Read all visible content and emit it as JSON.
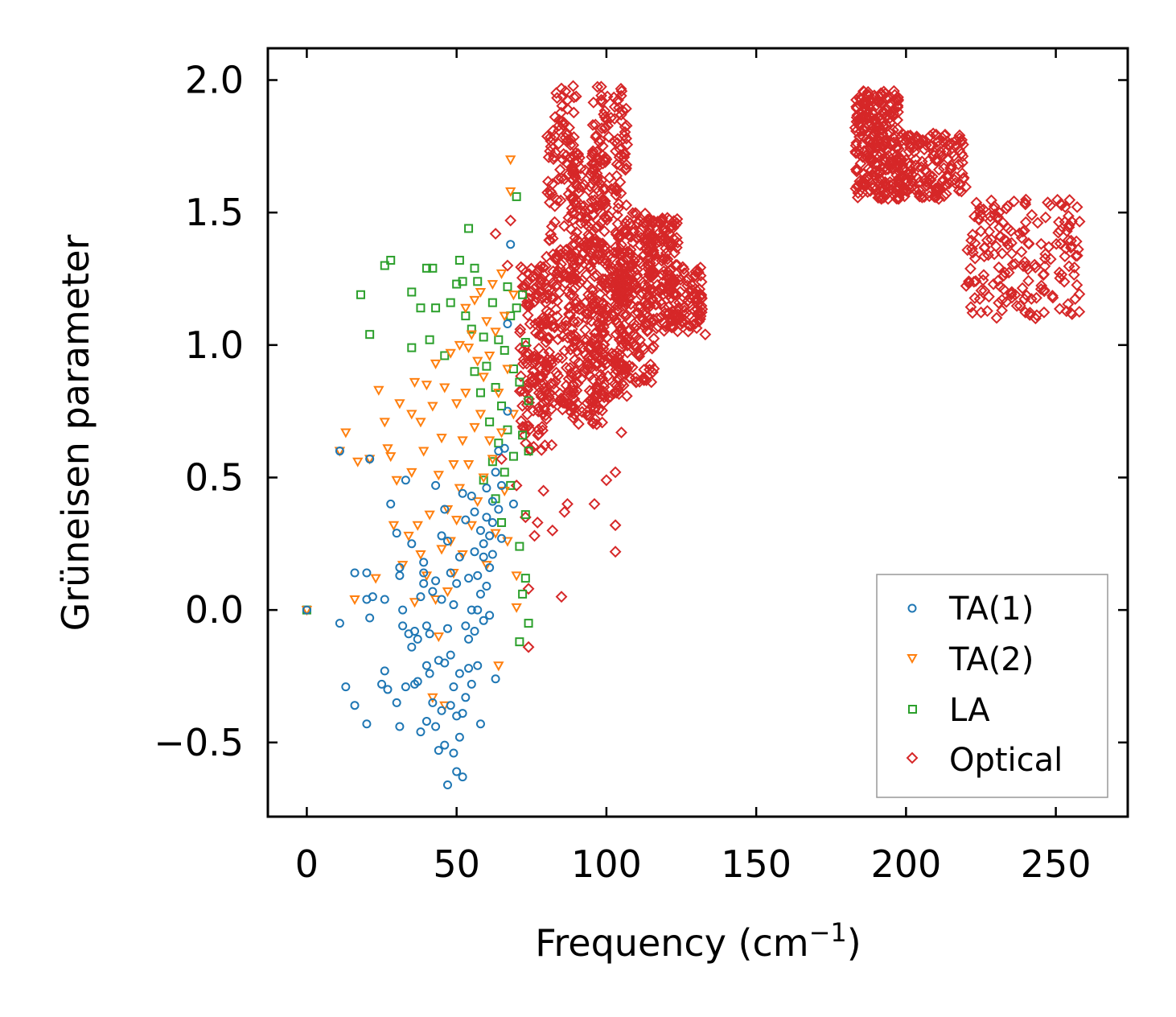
{
  "chart_data": {
    "type": "scatter",
    "title": "",
    "xlabel": "Frequency (cm",
    "xlabel_sup": "−1",
    "xlabel_close": ")",
    "ylabel": "Grüneisen parameter",
    "xlim": [
      -13,
      274
    ],
    "ylim": [
      -0.78,
      2.12
    ],
    "xticks": [
      0,
      50,
      100,
      150,
      200,
      250
    ],
    "xtick_labels": [
      "0",
      "50",
      "100",
      "150",
      "200",
      "250"
    ],
    "yticks": [
      -0.5,
      0.0,
      0.5,
      1.0,
      1.5,
      2.0
    ],
    "ytick_labels": [
      "−0.5",
      "0.0",
      "0.5",
      "1.0",
      "1.5",
      "2.0"
    ],
    "grid": false,
    "legend_position": "bottom-right",
    "series": [
      {
        "name": "TA(1)",
        "marker": "circle",
        "color": "#1f77b4",
        "points": [
          [
            0,
            0.0
          ],
          [
            11,
            0.6
          ],
          [
            11,
            -0.05
          ],
          [
            13,
            -0.29
          ],
          [
            16,
            0.14
          ],
          [
            16,
            -0.36
          ],
          [
            20,
            0.14
          ],
          [
            20,
            0.04
          ],
          [
            20,
            -0.43
          ],
          [
            21,
            -0.03
          ],
          [
            21,
            0.57
          ],
          [
            22,
            0.05
          ],
          [
            25,
            -0.28
          ],
          [
            26,
            -0.23
          ],
          [
            26,
            0.04
          ],
          [
            27,
            -0.3
          ],
          [
            28,
            0.4
          ],
          [
            30,
            -0.35
          ],
          [
            30,
            0.29
          ],
          [
            31,
            0.16
          ],
          [
            31,
            0.13
          ],
          [
            31,
            -0.44
          ],
          [
            32,
            -0.06
          ],
          [
            32,
            0.0
          ],
          [
            33,
            0.49
          ],
          [
            33,
            -0.29
          ],
          [
            34,
            -0.09
          ],
          [
            35,
            0.25
          ],
          [
            35,
            -0.14
          ],
          [
            36,
            -0.28
          ],
          [
            36,
            -0.08
          ],
          [
            37,
            -0.27
          ],
          [
            37,
            -0.11
          ],
          [
            38,
            0.05
          ],
          [
            38,
            -0.46
          ],
          [
            39,
            0.14
          ],
          [
            39,
            0.18
          ],
          [
            39,
            0.1
          ],
          [
            40,
            -0.42
          ],
          [
            40,
            -0.21
          ],
          [
            40,
            -0.06
          ],
          [
            41,
            -0.24
          ],
          [
            41,
            -0.09
          ],
          [
            42,
            0.07
          ],
          [
            42,
            -0.35
          ],
          [
            43,
            0.47
          ],
          [
            43,
            -0.44
          ],
          [
            43,
            0.11
          ],
          [
            44,
            -0.53
          ],
          [
            44,
            -0.19
          ],
          [
            45,
            0.28
          ],
          [
            45,
            -0.38
          ],
          [
            45,
            0.04
          ],
          [
            46,
            -0.51
          ],
          [
            46,
            0.38
          ],
          [
            46,
            -0.2
          ],
          [
            47,
            -0.66
          ],
          [
            47,
            -0.07
          ],
          [
            47,
            0.26
          ],
          [
            48,
            -0.36
          ],
          [
            48,
            0.14
          ],
          [
            48,
            -0.17
          ],
          [
            49,
            -0.54
          ],
          [
            49,
            -0.29
          ],
          [
            49,
            0.02
          ],
          [
            50,
            -0.61
          ],
          [
            50,
            -0.4
          ],
          [
            50,
            0.1
          ],
          [
            51,
            -0.24
          ],
          [
            51,
            -0.48
          ],
          [
            51,
            0.2
          ],
          [
            52,
            -0.63
          ],
          [
            52,
            -0.39
          ],
          [
            52,
            0.44
          ],
          [
            53,
            -0.06
          ],
          [
            53,
            -0.33
          ],
          [
            53,
            0.34
          ],
          [
            54,
            -0.11
          ],
          [
            54,
            0.12
          ],
          [
            54,
            -0.22
          ],
          [
            55,
            0.43
          ],
          [
            55,
            0.0
          ],
          [
            55,
            -0.28
          ],
          [
            56,
            0.22
          ],
          [
            56,
            -0.08
          ],
          [
            56,
            0.37
          ],
          [
            57,
            0.0
          ],
          [
            57,
            -0.21
          ],
          [
            57,
            0.13
          ],
          [
            58,
            -0.43
          ],
          [
            58,
            0.06
          ],
          [
            58,
            0.3
          ],
          [
            59,
            0.25
          ],
          [
            59,
            -0.04
          ],
          [
            59,
            0.2
          ],
          [
            60,
            0.35
          ],
          [
            60,
            0.09
          ],
          [
            60,
            0.46
          ],
          [
            61,
            0.16
          ],
          [
            61,
            -0.02
          ],
          [
            61,
            0.28
          ],
          [
            62,
            0.41
          ],
          [
            62,
            0.21
          ],
          [
            62,
            0.33
          ],
          [
            63,
            0.52
          ],
          [
            63,
            -0.26
          ],
          [
            64,
            0.38
          ],
          [
            64,
            0.6
          ],
          [
            65,
            0.47
          ],
          [
            65,
            0.27
          ],
          [
            66,
            0.61
          ],
          [
            67,
            1.08
          ],
          [
            67,
            0.75
          ],
          [
            68,
            1.38
          ],
          [
            69,
            0.4
          ]
        ]
      },
      {
        "name": "TA(2)",
        "marker": "triangle-down",
        "color": "#ff7f0e",
        "points": [
          [
            0,
            0.0
          ],
          [
            11,
            0.6
          ],
          [
            13,
            0.67
          ],
          [
            16,
            0.04
          ],
          [
            17,
            0.56
          ],
          [
            21,
            0.57
          ],
          [
            23,
            0.12
          ],
          [
            24,
            0.83
          ],
          [
            26,
            0.71
          ],
          [
            27,
            0.61
          ],
          [
            28,
            0.58
          ],
          [
            29,
            0.32
          ],
          [
            30,
            0.49
          ],
          [
            31,
            0.78
          ],
          [
            32,
            0.17
          ],
          [
            34,
            0.28
          ],
          [
            35,
            0.74
          ],
          [
            35,
            0.52
          ],
          [
            36,
            0.03
          ],
          [
            36,
            0.86
          ],
          [
            37,
            0.32
          ],
          [
            38,
            0.21
          ],
          [
            38,
            0.71
          ],
          [
            39,
            0.6
          ],
          [
            40,
            0.85
          ],
          [
            40,
            0.13
          ],
          [
            41,
            0.36
          ],
          [
            42,
            0.77
          ],
          [
            42,
            -0.33
          ],
          [
            43,
            0.93
          ],
          [
            43,
            0.04
          ],
          [
            44,
            0.51
          ],
          [
            44,
            -0.1
          ],
          [
            45,
            0.23
          ],
          [
            45,
            0.65
          ],
          [
            46,
            0.84
          ],
          [
            46,
            -0.36
          ],
          [
            47,
            0.38
          ],
          [
            47,
            0.07
          ],
          [
            48,
            0.97
          ],
          [
            48,
            0.26
          ],
          [
            49,
            0.55
          ],
          [
            49,
            0.14
          ],
          [
            50,
            0.78
          ],
          [
            50,
            0.34
          ],
          [
            51,
            1.0
          ],
          [
            51,
            0.46
          ],
          [
            52,
            0.64
          ],
          [
            52,
            0.21
          ],
          [
            53,
            1.14
          ],
          [
            53,
            0.82
          ],
          [
            54,
            0.99
          ],
          [
            54,
            0.55
          ],
          [
            55,
            1.04
          ],
          [
            55,
            0.32
          ],
          [
            56,
            1.17
          ],
          [
            56,
            0.69
          ],
          [
            57,
            0.94
          ],
          [
            57,
            0.41
          ],
          [
            58,
            1.2
          ],
          [
            58,
            0.74
          ],
          [
            59,
            0.88
          ],
          [
            59,
            0.5
          ],
          [
            60,
            1.09
          ],
          [
            60,
            0.17
          ],
          [
            61,
            0.96
          ],
          [
            61,
            0.64
          ],
          [
            62,
            1.23
          ],
          [
            62,
            0.57
          ],
          [
            63,
            1.05
          ],
          [
            63,
            0.29
          ],
          [
            64,
            0.82
          ],
          [
            64,
            -0.21
          ],
          [
            65,
            1.27
          ],
          [
            65,
            0.67
          ],
          [
            66,
            1.11
          ],
          [
            66,
            0.45
          ],
          [
            67,
            0.91
          ],
          [
            67,
            0.26
          ],
          [
            68,
            1.7
          ],
          [
            68,
            1.58
          ],
          [
            69,
            1.19
          ],
          [
            69,
            0.74
          ],
          [
            70,
            0.13
          ],
          [
            70,
            0.01
          ]
        ]
      },
      {
        "name": "LA",
        "marker": "square",
        "color": "#2ca02c",
        "points": [
          [
            0,
            0.0
          ],
          [
            18,
            1.19
          ],
          [
            21,
            1.04
          ],
          [
            26,
            1.3
          ],
          [
            28,
            1.32
          ],
          [
            35,
            0.99
          ],
          [
            35,
            1.2
          ],
          [
            38,
            1.14
          ],
          [
            40,
            1.29
          ],
          [
            41,
            1.02
          ],
          [
            42,
            1.29
          ],
          [
            43,
            1.14
          ],
          [
            46,
            0.96
          ],
          [
            48,
            1.16
          ],
          [
            50,
            1.23
          ],
          [
            51,
            1.32
          ],
          [
            52,
            1.24
          ],
          [
            53,
            1.11
          ],
          [
            54,
            1.44
          ],
          [
            55,
            1.06
          ],
          [
            56,
            1.29
          ],
          [
            56,
            0.9
          ],
          [
            57,
            1.24
          ],
          [
            58,
            0.82
          ],
          [
            59,
            1.03
          ],
          [
            59,
            0.49
          ],
          [
            60,
            0.92
          ],
          [
            61,
            0.71
          ],
          [
            62,
            1.16
          ],
          [
            62,
            0.56
          ],
          [
            63,
            0.84
          ],
          [
            63,
            0.42
          ],
          [
            64,
            1.02
          ],
          [
            64,
            0.63
          ],
          [
            65,
            0.77
          ],
          [
            65,
            0.33
          ],
          [
            66,
            0.98
          ],
          [
            66,
            0.52
          ],
          [
            67,
            1.22
          ],
          [
            67,
            0.68
          ],
          [
            68,
            1.11
          ],
          [
            68,
            0.47
          ],
          [
            69,
            0.91
          ],
          [
            69,
            0.58
          ],
          [
            70,
            1.56
          ],
          [
            70,
            1.14
          ],
          [
            71,
            0.86
          ],
          [
            71,
            0.24
          ],
          [
            72,
            1.19
          ],
          [
            72,
            0.66
          ],
          [
            73,
            1.01
          ],
          [
            73,
            0.12
          ],
          [
            74,
            0.79
          ],
          [
            74,
            -0.05
          ],
          [
            71,
            -0.12
          ],
          [
            72,
            0.06
          ],
          [
            73,
            0.36
          ],
          [
            74,
            0.6
          ]
        ]
      },
      {
        "name": "Optical",
        "marker": "diamond",
        "color": "#d62728",
        "points": []
      }
    ],
    "optical_clusters": [
      {
        "x": [
          71,
          82
        ],
        "y": [
          0.6,
          1.3
        ],
        "n": 160
      },
      {
        "x": [
          80,
          90
        ],
        "y": [
          0.75,
          1.98
        ],
        "n": 200
      },
      {
        "x": [
          88,
          100
        ],
        "y": [
          0.7,
          1.75
        ],
        "n": 250
      },
      {
        "x": [
          95,
          107
        ],
        "y": [
          0.8,
          1.98
        ],
        "n": 250
      },
      {
        "x": [
          103,
          116
        ],
        "y": [
          0.85,
          1.5
        ],
        "n": 200
      },
      {
        "x": [
          113,
          124
        ],
        "y": [
          1.05,
          1.48
        ],
        "n": 150
      },
      {
        "x": [
          120,
          132
        ],
        "y": [
          1.05,
          1.3
        ],
        "n": 80
      },
      {
        "x": [
          183,
          198
        ],
        "y": [
          1.55,
          1.96
        ],
        "n": 260
      },
      {
        "x": [
          197,
          220
        ],
        "y": [
          1.55,
          1.8
        ],
        "n": 160
      },
      {
        "x": [
          220,
          258
        ],
        "y": [
          1.1,
          1.55
        ],
        "n": 180
      }
    ],
    "optical_outliers": [
      [
        63,
        1.42
      ],
      [
        67,
        1.3
      ],
      [
        68,
        1.47
      ],
      [
        73,
        0.35
      ],
      [
        74,
        0.08
      ],
      [
        74,
        -0.14
      ],
      [
        77,
        0.33
      ],
      [
        79,
        0.45
      ],
      [
        82,
        0.3
      ],
      [
        85,
        0.05
      ],
      [
        86,
        0.37
      ],
      [
        87,
        0.4
      ],
      [
        96,
        0.4
      ],
      [
        100,
        0.49
      ],
      [
        103,
        0.52
      ],
      [
        103,
        0.32
      ],
      [
        103,
        0.22
      ],
      [
        105,
        0.67
      ],
      [
        104,
        0.93
      ],
      [
        115,
        0.86
      ],
      [
        126,
        1.13
      ],
      [
        133,
        1.04
      ],
      [
        65,
        0.57
      ],
      [
        70,
        0.47
      ],
      [
        76,
        0.28
      ]
    ]
  }
}
